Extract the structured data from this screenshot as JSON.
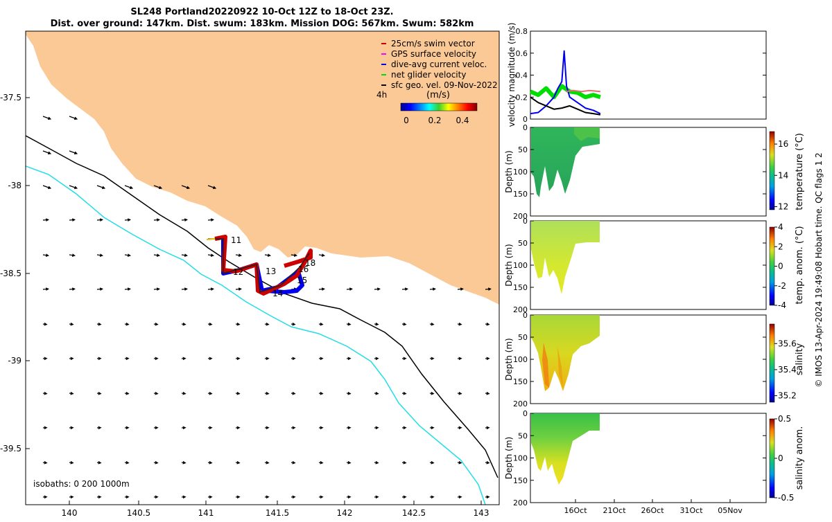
{
  "title": {
    "line1": "SL248 Portland20220922 10-Oct 12Z to 18-Oct 23Z.",
    "line2": "Dist. over ground: 147km. Dist. swum: 183km. Mission DOG: 567km. Swum: 582km"
  },
  "map": {
    "x_ticks": [
      "140",
      "140.5",
      "141",
      "141.5",
      "142",
      "142.5",
      "143"
    ],
    "y_ticks": [
      "-37.5",
      "-38",
      "-38.5",
      "-39",
      "-39.5"
    ],
    "isobaths_label": "isobaths: 0   200  1000m",
    "legend": [
      {
        "label": "25cm/s swim vector",
        "color": "#cc0000"
      },
      {
        "label": "GPS surface velocity",
        "color": "#ff00ff"
      },
      {
        "label": "dive-avg current veloc.",
        "color": "#0000ee"
      },
      {
        "label": "net glider velocity",
        "color": "#00dd00"
      },
      {
        "label": "sfc geo. vel. 09-Nov-2022",
        "color": "#000000"
      }
    ],
    "interval_label": "4h",
    "colorbar_unit": "(m/s)",
    "colorbar_ticks": [
      "0",
      "0.2",
      "0.4"
    ],
    "day_labels": [
      "11",
      "12",
      "13",
      "14",
      "15",
      "16",
      "18"
    ],
    "land_color": "#fbc995",
    "isobath_200_color": "#000000",
    "isobath_1000_color": "#22dde8"
  },
  "chart_data": [
    {
      "type": "line",
      "title": "",
      "ylabel": "velocity magnitude (m/s)",
      "ylim": [
        0,
        0.8
      ],
      "yticks": [
        "0",
        "0.2",
        "0.4",
        "0.6",
        "0.8"
      ],
      "x_range_days": [
        "10-Oct",
        "09-Nov"
      ],
      "series": [
        {
          "name": "net glider velocity",
          "color": "#00dd00",
          "x_day": [
            10.0,
            11.0,
            12.0,
            13.0,
            14.0,
            15.0,
            16.0,
            17.0,
            18.0,
            18.9
          ],
          "values": [
            0.25,
            0.22,
            0.28,
            0.2,
            0.3,
            0.25,
            0.24,
            0.2,
            0.22,
            0.2
          ]
        },
        {
          "name": "dive-avg current veloc.",
          "color": "#0000ee",
          "x_day": [
            10.0,
            11.0,
            12.0,
            13.0,
            13.5,
            14.0,
            14.3,
            14.6,
            15.0,
            16.0,
            17.0,
            18.0,
            18.9
          ],
          "values": [
            0.05,
            0.06,
            0.12,
            0.2,
            0.28,
            0.34,
            0.62,
            0.3,
            0.2,
            0.15,
            0.1,
            0.08,
            0.05
          ]
        },
        {
          "name": "sfc geo. vel.",
          "color": "#000000",
          "x_day": [
            10.0,
            11.0,
            12.0,
            13.0,
            14.0,
            15.0,
            16.0,
            17.0,
            18.0,
            18.9
          ],
          "values": [
            0.2,
            0.15,
            0.12,
            0.09,
            0.1,
            0.12,
            0.09,
            0.06,
            0.05,
            0.04
          ]
        },
        {
          "name": "GPS surface velocity",
          "color": "#e07070",
          "x_day": [
            14.5,
            15.5,
            16.5,
            17.5,
            18.9
          ],
          "values": [
            0.25,
            0.26,
            0.25,
            0.26,
            0.25
          ]
        }
      ]
    },
    {
      "type": "heatmap",
      "ylabel": "Depth (m)",
      "colorbar_label": "temperature (°C)",
      "ylim": [
        200,
        0
      ],
      "yticks": [
        "0",
        "50",
        "100",
        "150",
        "200"
      ],
      "colorbar_ticks": [
        "12",
        "14",
        "16"
      ],
      "colorbar_range": [
        11.8,
        16.8
      ]
    },
    {
      "type": "heatmap",
      "ylabel": "Depth (m)",
      "colorbar_label": "temp. anom. (°C)",
      "ylim": [
        200,
        0
      ],
      "yticks": [
        "0",
        "50",
        "100",
        "150",
        "200"
      ],
      "colorbar_ticks": [
        "4",
        "2",
        "0",
        "-2",
        "-4"
      ],
      "colorbar_range": [
        -4,
        4
      ]
    },
    {
      "type": "heatmap",
      "ylabel": "Depth (m)",
      "colorbar_label": "salinity",
      "ylim": [
        200,
        0
      ],
      "yticks": [
        "0",
        "50",
        "100",
        "150",
        "200"
      ],
      "colorbar_ticks": [
        "35.6",
        "35.4",
        "35.2"
      ],
      "colorbar_range": [
        35.15,
        35.75
      ]
    },
    {
      "type": "heatmap",
      "ylabel": "Depth (m)",
      "colorbar_label": "salinity anom.",
      "ylim": [
        200,
        0
      ],
      "yticks": [
        "0",
        "50",
        "100",
        "150",
        "200"
      ],
      "colorbar_ticks": [
        "0.5",
        "0",
        "-0.5"
      ],
      "colorbar_range": [
        -0.5,
        0.5
      ],
      "x_ticks": [
        "16Oct",
        "21Oct",
        "26Oct",
        "31Oct",
        "05Nov"
      ]
    }
  ],
  "credit": "© IMOS 13-Apr-2024 19:49:08 Hobart time. QC flags 1  2"
}
